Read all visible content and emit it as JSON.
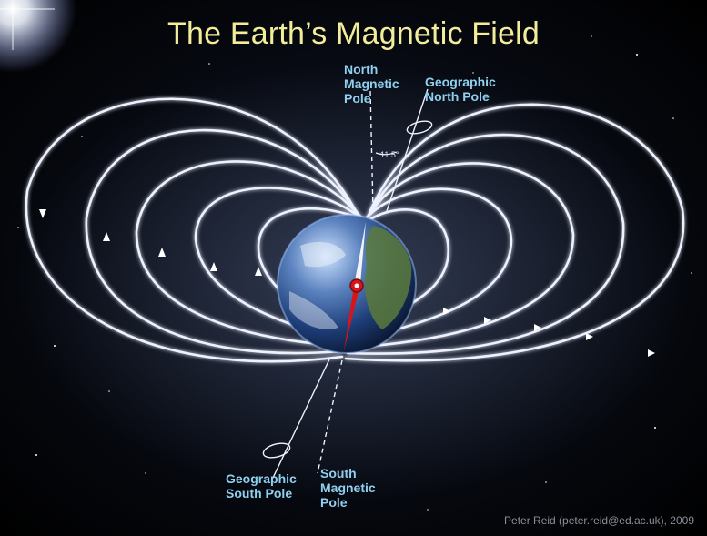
{
  "title": "The Earth’s Magnetic Field",
  "labels": {
    "north_magnetic_pole": [
      "North",
      "Magnetic",
      "Pole"
    ],
    "geographic_north_pole": [
      "Geographic",
      "North Pole"
    ],
    "geographic_south_pole": [
      "Geographic",
      "South Pole"
    ],
    "south_magnetic_pole": [
      "South",
      "Magnetic",
      "Pole"
    ]
  },
  "tilt_angle": "11.5°",
  "credit": "Peter Reid (peter.reid@ed.ac.uk), 2009",
  "colors": {
    "title": "#f3ec9a",
    "label": "#8fd0ef",
    "field_line": "#eef2ff",
    "compass_north": "#f4f4f4",
    "compass_south": "#d8141a"
  }
}
